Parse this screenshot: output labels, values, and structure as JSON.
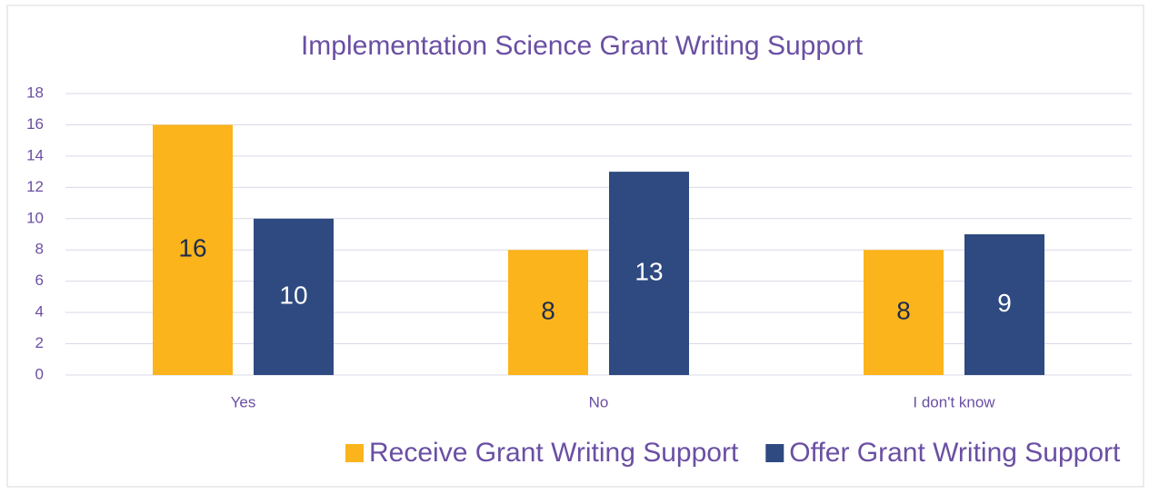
{
  "chart_data": {
    "type": "bar",
    "title": "Implementation Science Grant Writing Support",
    "categories": [
      "Yes",
      "No",
      "I don't know"
    ],
    "series": [
      {
        "name": "Receive Grant Writing Support",
        "color": "#fbb41b",
        "values": [
          16,
          8,
          8
        ]
      },
      {
        "name": "Offer Grant Writing Support",
        "color": "#2e4a80",
        "values": [
          10,
          13,
          9
        ]
      }
    ],
    "ylim": [
      0,
      18
    ],
    "yticks": [
      0,
      2,
      4,
      6,
      8,
      10,
      12,
      14,
      16,
      18
    ],
    "grid": true,
    "legend": "bottom"
  }
}
